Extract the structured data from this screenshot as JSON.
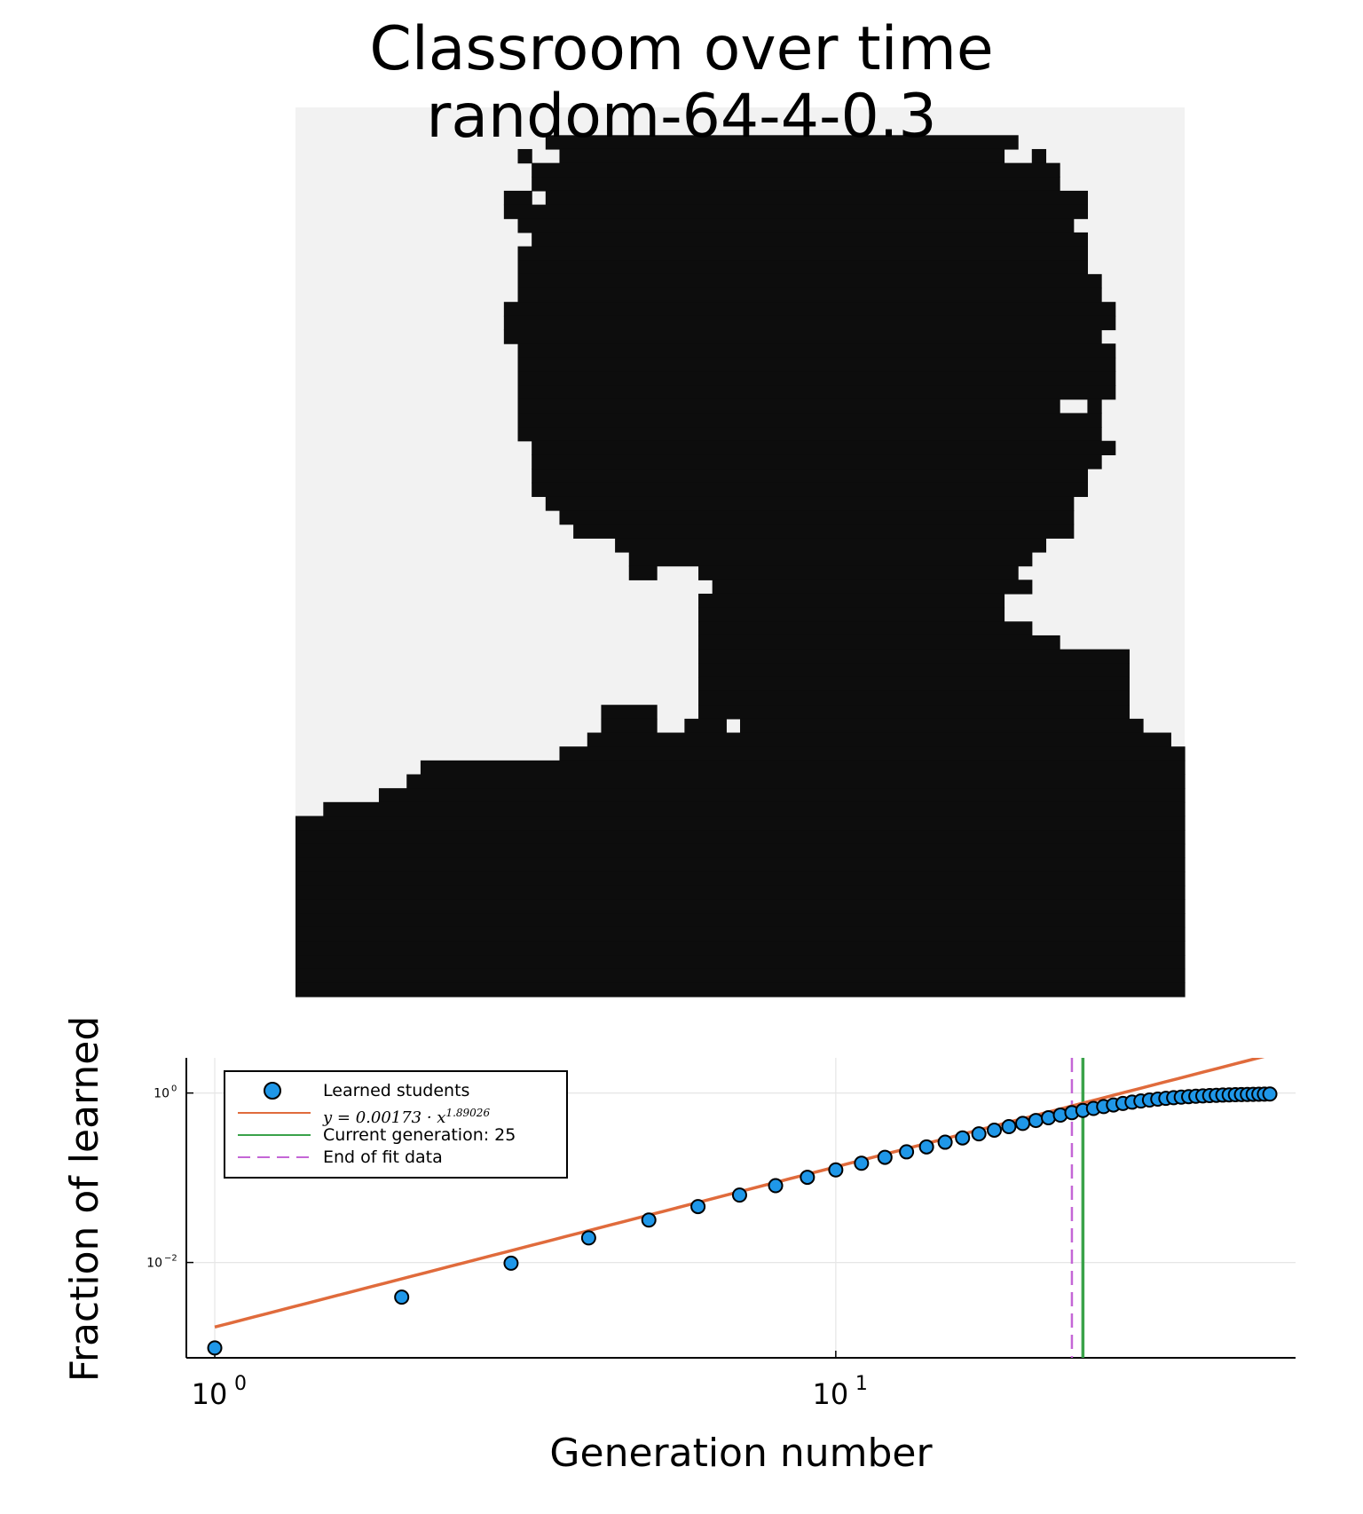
{
  "title": {
    "line1": "Classroom over time",
    "line2": "random-64-4-0.3"
  },
  "colors": {
    "grid_black": "#0d0d0d",
    "grid_light": "#f2f2f2",
    "learned": "#1f97e8",
    "fit": "#e06b3c",
    "current": "#3aa24a",
    "endfit": "#c466d6"
  },
  "chart_data": [
    {
      "type": "heatmap",
      "description": "64x64 binary classroom grid (black = learned, light = not learned)",
      "size": 64,
      "rows": [
        "llllllllllllllllllllllllllllllllllllllllllllllllllllllllllllllll",
        "llllllllllllllllllllllllllllllllllllllllllllllllllllllllllllllll",
        "llllllllllllllllllbbbbbbbbbbbbbbbbbbbbbbbbbbbbbbbbbblllllllllllll",
        "llllllllllllllllbllbbbbbbbbbbbbbbbbbbbbbbbbbbbbbbbbllbllllllllllll",
        "lllllllllllllllllbbbbbbbbbbbbbbbbbbbbbbbbbbbbbbbbbbbbbbllllllllll",
        "lllllllllllllllllbbbbbbbbbbbbbbbbbbbbbbbbbbbbbbbbbbbbbbllllllllll",
        "lllllllllllllllbblbbbbbbbbbbbbbbbbbbbbbbbbbbbbbbbbbbbbbbblllllllll",
        "lllllllllllllllbbbbbbbbbbbbbbbbbbbbbbbbbbbbbbbbbbbbbbbbbblllllllll",
        "llllllllllllllllbbbbbbbbbbbbbbbbbbbbbbbbbbbbbbbbbbbbbbbblllllllll",
        "lllllllllllllllllbbbbbbbbbbbbbbbbbbbbbbbbbbbbbbbbbbbbbbbbllllllll",
        "llllllllllllllllbbbbbbbbbbbbbbbbbbbbbbbbbbbbbbbbbbbbbbbbbllllllll",
        "llllllllllllllllbbbbbbbbbbbbbbbbbbbbbbbbbbbbbbbbbbbbbbbbbllllllll",
        "llllllllllllllllbbbbbbbbbbbbbbbbbbbbbbbbbbbbbbbbbbbbbbbbbbllllllll",
        "llllllllllllllllbbbbbbbbbbbbbbbbbbbbbbbbbbbbbbbbbbbbbbbbbbllllllll",
        "lllllllllllllllbbbbbbbbbbbbbbbbbbbbbbbbbbbbbbbbbbbbbbbbbbbbllllll",
        "lllllllllllllllbbbbbbbbbbbbbbbbbbbbbbbbbbbbbbbbbbbbbbbbbbbbllllll",
        "lllllllllllllllbbbbbbbbbbbbbbbbbbbbbbbbbbbbbbbbbbbbbbbbbbbllllll",
        "llllllllllllllllbbbbbbbbbbbbbbbbbbbbbbbbbbbbbbbbbbbbbbbbbbblllllll",
        "llllllllllllllllbbbbbbbbbbbbbbbbbbbbbbbbbbbbbbbbbbbbbbbbbbblllllll",
        "llllllllllllllllbbbbbbbbbbbbbbbbbbbbbbbbbbbbbbbbbbbbbbbbbbblllllll",
        "llllllllllllllllbbbbbbbbbbbbbbbbbbbbbbbbbbbbbbbbbbbbbbbbbbblllllll",
        "llllllllllllllllbbbbbbbbbbbbbbbbbbbbbbbbbbbbbbbbbbbbbbbllblllllll",
        "llllllllllllllllbbbbbbbbbbbbbbbbbbbbbbbbbbbbbbbbbbbbbbbbbblllllll",
        "llllllllllllllllbbbbbbbbbbbbbbbbbbbbbbbbbbbbbbbbbbbbbbbbbblllllll",
        "lllllllllllllllllbbbbbbbbbbbbbbbbbbbbbbbbbbbbbbbbbbbbbbbbbbllllll",
        "lllllllllllllllllbbbbbbbbbbbbbbbbbbbbbbbbbbbbbbbbbbbbbbbbblllllll",
        "lllllllllllllllllbbbbbbbbbbbbbbbbbbbbbbbbbbbbbbbbbbbbbbbbllllllll",
        "lllllllllllllllllbbbbbbbbbbbbbbbbbbbbbbbbbbbbbbbbbbbbbbbbllllllll",
        "llllllllllllllllllbbbbbbbbbbbbbbbbbbbbbbbbbbbbbbbbbbbbbbllllllllll",
        "lllllllllllllllllllbbbbbbbbbbbbbbbbbbbbbbbbbbbbbbbbbbbbbllllllllll",
        "llllllllllllllllllllbbbbbbbbbbbbbbbbbbbbbbbbbbbbbbbbbbbblllllllllll",
        "lllllllllllllllllllllllbbbbbbbbbbbbbbbbbbbbbbbbbbbbbbbllllllllllll",
        "llllllllllllllllllllllllbbbbbbbbbbbbbbbbbbbbbbbbbbbbbllllllllllll",
        "llllllllllllllllllllllllbblllbbbbbbbbbbbbbbbbbbbbbbbllllllllllllll",
        "llllllllllllllllllllllllllllllbbbbbbbbbbbbbbbbbbbbbbblllllllllllll",
        "lllllllllllllllllllllllllllllbbbbbbbbbbbbbbbbbbbbbbllllllllllllll",
        "lllllllllllllllllllllllllllllbbbbbbbbbbbbbbbbbbbbbblllllllllllllll",
        "lllllllllllllllllllllllllllllbbbbbbbbbbbbbbbbbbbbbbbblllllllllllll",
        "lllllllllllllllllllllllllllllbbbbbbbbbbbbbbbbbbbbbbbbbblllllllllll",
        "lllllllllllllllllllllllllllllbbbbbbbbbbbbbbbbbbbbbbbbbbbbbbbllllll",
        "lllllllllllllllllllllllllllllbbbbbbbbbbbbbbbbbbbbbbbbbbbbbbbllllll",
        "lllllllllllllllllllllllllllllbbbbbbbbbbbbbbbbbbbbbbbbbbbbbbbllllll",
        "lllllllllllllllllllllllllllllbbbbbbbbbbbbbbbbbbbbbbbbbbbbbbbllllll",
        "llllllllllllllllllllllbbbblllbbbbbbbbbbbbbbbbbbbbbbbbbbbbbbbllllll",
        "llllllllllllllllllllllbbbbllbbblbbbbbbbbbbbbbbbbbbbbbbbbbbbbbllllll",
        "lllllllllllllllllllllbbbbbbbbbbbbbbbbbbbbbbbbbbbbbbbbbbbbbbbbbbllll",
        "lllllllllllllllllllbbbbbbbbbbbbbbbbbbbbbbbbbbbbbbbbbbbbbbbbbbbbbll",
        "lllllllllbbbbbbbbbbbbbbbbbbbbbbbbbbbbbbbbbbbbbbbbbbbbbbbbbbbbbbbbb",
        "llllllllbbbbbbbbbbbbbbbbbbbbbbbbbbbbbbbbbbbbbbbbbbbbbbbbbbbbbbbbbb",
        "llllllbbbbbbbbbbbbbbbbbbbbbbbbbbbbbbbbbbbbbbbbbbbbbbbbbbbbbbbbbbbb",
        "llbbbbbbbbbbbbbbbbbbbbbbbbbbbbbbbbbbbbbbbbbbbbbbbbbbbbbbbbbbbbbbbb",
        "bbbbbbbbbbbbbbbbbbbbbbbbbbbbbbbbbbbbbbbbbbbbbbbbbbbbbbbbbbbbbbbbbb",
        "bbbbbbbbbbbbbbbbbbbbbbbbbbbbbbbbbbbbbbbbbbbbbbbbbbbbbbbbbbbbbbbbbb",
        "bbbbbbbbbbbbbbbbbbbbbbbbbbbbbbbbbbbbbbbbbbbbbbbbbbbbbbbbbbbbbbbbbb",
        "bbbbbbbbbbbbbbbbbbbbbbbbbbbbbbbbbbbbbbbbbbbbbbbbbbbbbbbbbbbbbbbbbb",
        "bbbbbbbbbbbbbbbbbbbbbbbbbbbbbbbbbbbbbbbbbbbbbbbbbbbbbbbbbbbbbbbbbb",
        "bbbbbbbbbbbbbbbbbbbbbbbbbbbbbbbbbbbbbbbbbbbbbbbbbbbbbbbbbbbbbbbbbb",
        "bbbbbbbbbbbbbbbbbbbbbbbbbbbbbbbbbbbbbbbbbbbbbbbbbbbbbbbbbbbbbbbbbb",
        "bbbbbbbbbbbbbbbbbbbbbbbbbbbbbbbbbbbbbbbbbbbbbbbbbbbbbbbbbbbbbbbbbb",
        "bbbbbbbbbbbbbbbbbbbbbbbbbbbbbbbbbbbbbbbbbbbbbbbbbbbbbbbbbbbbbbbbbb",
        "bbbbbbbbbbbbbbbbbbbbbbbbbbbbbbbbbbbbbbbbbbbbbbbbbbbbbbbbbbbbbbbbbb",
        "bbbbbbbbbbbbbbbbbbbbbbbbbbbbbbbbbbbbbbbbbbbbbbbbbbbbbbbbbbbbbbbbbb",
        "bbbbbbbbbbbbbbbbbbbbbbbbbbbbbbbbbbbbbbbbbbbbbbbbbbbbbbbbbbbbbbbbbb",
        "bbbbbbbbbbbbbbbbbbbbbbbbbbbbbbbbbbbbbbbbbbbbbbbbbbbbbbbbbbbbbbbbbb"
      ]
    },
    {
      "type": "scatter",
      "xlabel": "Generation number",
      "ylabel": "Fraction of learned",
      "xscale": "log10",
      "yscale": "log10",
      "xlim": [
        0.9,
        55
      ],
      "ylim": [
        0.00075,
        2.6
      ],
      "xticks": [
        1,
        10
      ],
      "xtick_labels": [
        {
          "base": "10",
          "exp": "0"
        },
        {
          "base": "10",
          "exp": "1"
        }
      ],
      "yticks": [
        0.01,
        1
      ],
      "ytick_labels": [
        {
          "base": "10",
          "exp": "−2"
        },
        {
          "base": "10",
          "exp": "0"
        }
      ],
      "grid": true,
      "legend_position": "top-left",
      "series": [
        {
          "name": "Learned students",
          "kind": "scatter",
          "x": [
            1,
            2,
            3,
            4,
            5,
            6,
            7,
            8,
            9,
            10,
            11,
            12,
            13,
            14,
            15,
            16,
            17,
            18,
            19,
            20,
            21,
            22,
            23,
            24,
            25,
            26,
            27,
            28,
            29,
            30,
            31,
            32,
            33,
            34,
            35,
            36,
            37,
            38,
            39,
            40,
            41,
            42,
            43,
            44,
            45,
            46,
            47,
            48,
            49,
            50
          ],
          "y": [
            0.00098,
            0.0039,
            0.0098,
            0.0195,
            0.0317,
            0.0457,
            0.0625,
            0.0806,
            0.1013,
            0.1238,
            0.1484,
            0.1743,
            0.2021,
            0.2314,
            0.2627,
            0.2954,
            0.3296,
            0.3647,
            0.4009,
            0.4375,
            0.4741,
            0.5107,
            0.5488,
            0.5859,
            0.6226,
            0.6577,
            0.6914,
            0.7231,
            0.7524,
            0.7798,
            0.8047,
            0.8271,
            0.8472,
            0.865,
            0.8809,
            0.8945,
            0.9063,
            0.9165,
            0.9253,
            0.9331,
            0.9399,
            0.9458,
            0.951,
            0.9556,
            0.9595,
            0.9629,
            0.9658,
            0.9683,
            0.9705,
            0.9722
          ]
        },
        {
          "name": "y = 0.00173 · x^1.89026",
          "kind": "line",
          "label_parts": {
            "lhs": "y = 0.00173 · x",
            "exp": "1.89026"
          },
          "coef": 0.00173,
          "power": 1.89026,
          "x_range": [
            1,
            50
          ]
        },
        {
          "name": "Current generation: 25",
          "kind": "vline",
          "x": 25
        },
        {
          "name": "End of fit data",
          "kind": "vline_dashed",
          "x": 24
        }
      ]
    }
  ]
}
